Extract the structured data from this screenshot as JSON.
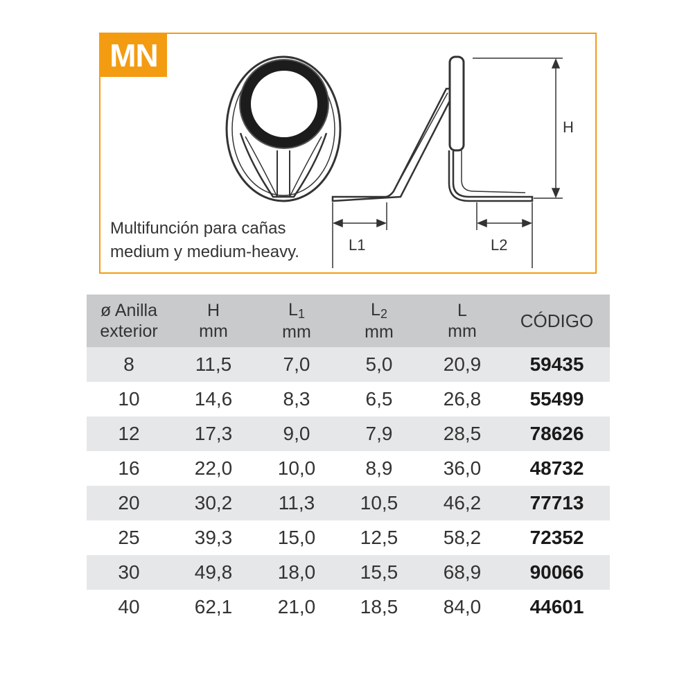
{
  "panel": {
    "badge": "MN",
    "description_line1": "Multifunción para cañas",
    "description_line2": "medium y medium-heavy.",
    "dim_h": "H",
    "dim_l1": "L1",
    "dim_l2": "L2",
    "accent_color": "#f39c12"
  },
  "table": {
    "headers": [
      {
        "line1": "ø Anilla",
        "line2": "exterior"
      },
      {
        "line1": "H",
        "line2": "mm"
      },
      {
        "line1": "L",
        "sub": "1",
        "line2": "mm"
      },
      {
        "line1": "L",
        "sub": "2",
        "line2": "mm"
      },
      {
        "line1": "L",
        "line2": "mm"
      },
      {
        "line1": "CÓDIGO",
        "line2": ""
      }
    ],
    "rows": [
      [
        "8",
        "11,5",
        "7,0",
        "5,0",
        "20,9",
        "59435"
      ],
      [
        "10",
        "14,6",
        "8,3",
        "6,5",
        "26,8",
        "55499"
      ],
      [
        "12",
        "17,3",
        "9,0",
        "7,9",
        "28,5",
        "78626"
      ],
      [
        "16",
        "22,0",
        "10,0",
        "8,9",
        "36,0",
        "48732"
      ],
      [
        "20",
        "30,2",
        "11,3",
        "10,5",
        "46,2",
        "77713"
      ],
      [
        "25",
        "39,3",
        "15,0",
        "12,5",
        "58,2",
        "72352"
      ],
      [
        "30",
        "49,8",
        "18,0",
        "15,5",
        "68,9",
        "90066"
      ],
      [
        "40",
        "62,1",
        "21,0",
        "18,5",
        "84,0",
        "44601"
      ]
    ]
  }
}
